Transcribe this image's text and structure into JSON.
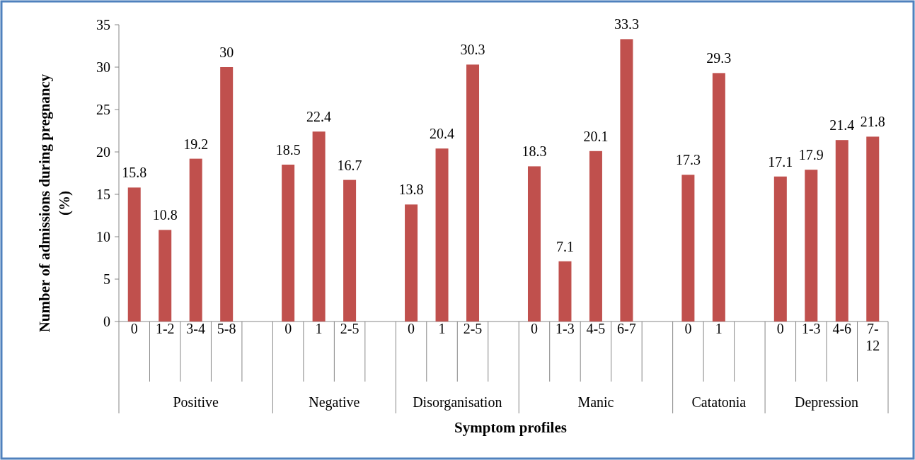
{
  "chart_data": {
    "type": "bar",
    "ylabel": "Number of admissions during pregnancy (%)",
    "xlabel": "Symptom profiles",
    "categories": [
      "0",
      "1-2",
      "3-4",
      "5-8",
      null,
      "0",
      "1",
      "2-5",
      null,
      "0",
      "1",
      "2-5",
      null,
      "0",
      "1-3",
      "4-5",
      "6-7",
      null,
      "0",
      "1",
      null,
      "0",
      "1-3",
      "4-6",
      "7-12"
    ],
    "values": [
      15.8,
      10.8,
      19.2,
      30,
      null,
      18.5,
      22.4,
      16.7,
      null,
      13.8,
      20.4,
      30.3,
      null,
      18.3,
      7.1,
      20.1,
      33.3,
      null,
      17.3,
      29.3,
      null,
      17.1,
      17.9,
      21.4,
      21.8
    ],
    "color": "#c0504d",
    "ylim": [
      0,
      35
    ],
    "yticks": [
      0,
      5,
      10,
      15,
      20,
      25,
      30,
      35
    ],
    "data_labels": true,
    "annotations": [
      "Positive",
      "Negative",
      "Disorganisation",
      "Manic",
      "Catatonia",
      "Depression"
    ]
  }
}
